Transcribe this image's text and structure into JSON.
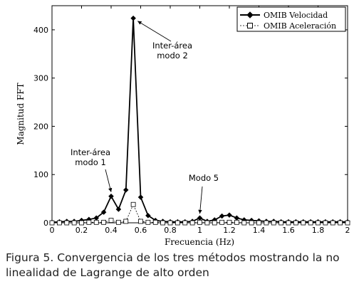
{
  "caption": {
    "line1": "Figura 5. Convergencia de los tres métodos mostrando la no",
    "line2": "linealidad de Lagrange de alto orden"
  },
  "chart_data": {
    "type": "line",
    "title": "",
    "xlabel": "Frecuencia (Hz)",
    "ylabel": "Magnitud FFT",
    "xlim": [
      0,
      2
    ],
    "ylim": [
      0,
      450
    ],
    "xticks": [
      0,
      0.2,
      0.4,
      0.6,
      0.8,
      1,
      1.2,
      1.4,
      1.6,
      1.8,
      2
    ],
    "yticks": [
      0,
      100,
      200,
      300,
      400
    ],
    "grid": false,
    "legend_position": "top-right",
    "x": [
      0,
      0.05,
      0.1,
      0.15,
      0.2,
      0.25,
      0.3,
      0.35,
      0.4,
      0.45,
      0.5,
      0.55,
      0.6,
      0.65,
      0.7,
      0.75,
      0.8,
      0.85,
      0.9,
      0.95,
      1.0,
      1.05,
      1.1,
      1.15,
      1.2,
      1.25,
      1.3,
      1.35,
      1.4,
      1.45,
      1.5,
      1.55,
      1.6,
      1.65,
      1.7,
      1.75,
      1.8,
      1.85,
      1.9,
      1.95,
      2.0
    ],
    "series": [
      {
        "name": "OMIB Velocidad",
        "marker": "filled-star",
        "values": [
          1,
          2,
          3,
          3,
          5,
          7,
          10,
          22,
          55,
          28,
          68,
          424,
          53,
          15,
          5,
          3,
          2,
          2,
          2,
          3,
          10,
          3,
          6,
          14,
          16,
          10,
          6,
          5,
          4,
          3,
          3,
          2,
          2,
          2,
          2,
          2,
          2,
          2,
          2,
          2,
          2
        ]
      },
      {
        "name": "OMIB Aceleración",
        "marker": "open-square",
        "values": [
          0,
          0,
          0,
          0,
          0,
          1,
          1,
          1,
          5,
          1,
          3,
          38,
          3,
          1,
          1,
          0,
          0,
          0,
          0,
          0,
          1,
          0,
          0,
          1,
          1,
          1,
          0,
          0,
          0,
          0,
          0,
          0,
          0,
          0,
          0,
          0,
          0,
          0,
          0,
          0,
          0
        ]
      }
    ],
    "annotations": [
      {
        "text_lines": [
          "Inter-área",
          "modo 2"
        ],
        "target": [
          0.56,
          424
        ]
      },
      {
        "text_lines": [
          "Inter-área",
          "modo 1"
        ],
        "target": [
          0.4,
          55
        ]
      },
      {
        "text_lines": [
          "Modo 5"
        ],
        "target": [
          1.0,
          10
        ]
      }
    ]
  }
}
